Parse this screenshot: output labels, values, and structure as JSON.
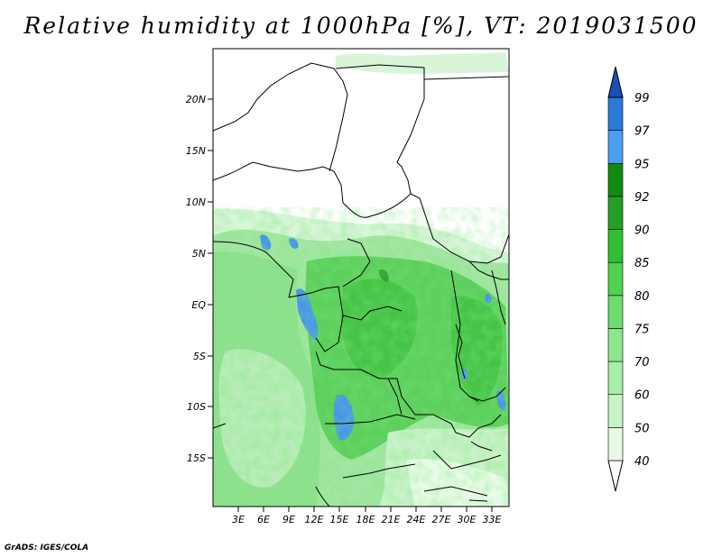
{
  "title": "Relative humidity at 1000hPa [%], VT: 2019031500",
  "credit": "GrADS: IGES/COLA",
  "lat_labels": [
    "20N",
    "15N",
    "10N",
    "5N",
    "EQ",
    "5S",
    "10S",
    "15S"
  ],
  "lon_labels": [
    "3E",
    "6E",
    "9E",
    "12E",
    "15E",
    "18E",
    "21E",
    "24E",
    "27E",
    "30E",
    "33E"
  ],
  "colorbar": {
    "levels": [
      "40",
      "50",
      "60",
      "70",
      "75",
      "80",
      "85",
      "90",
      "92",
      "95",
      "97",
      "99"
    ],
    "colors": [
      "#ffffff",
      "#e6fae6",
      "#c8f5c8",
      "#a8f0a8",
      "#8ce68c",
      "#6edc6e",
      "#50d250",
      "#32be32",
      "#23a023",
      "#118a11",
      "#4aa0f0",
      "#2a7ad8",
      "#1a50b8"
    ]
  }
}
